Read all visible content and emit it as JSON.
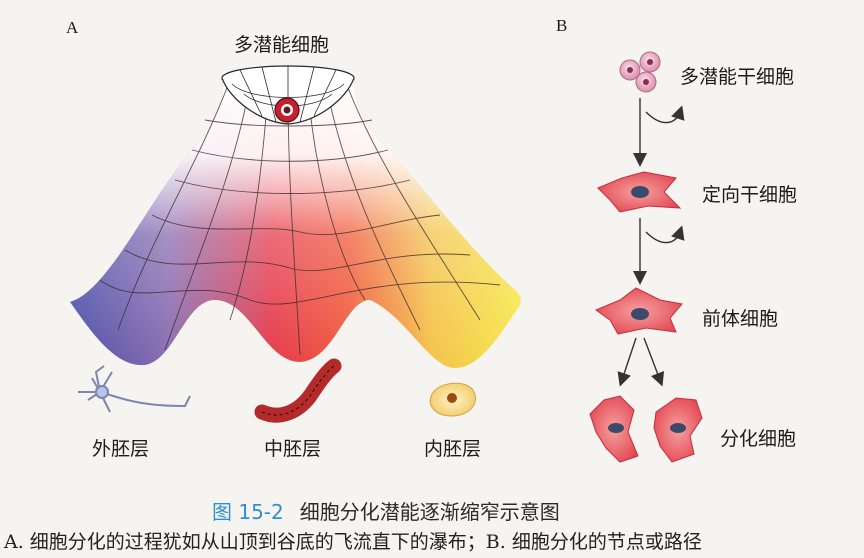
{
  "panel_a": {
    "letter": "A",
    "top_label": "多潜能细胞",
    "layers": [
      "外胚层",
      "中胚层",
      "内胚层"
    ]
  },
  "panel_b": {
    "letter": "B",
    "stages": [
      "多潜能干细胞",
      "定向干细胞",
      "前体细胞",
      "分化细胞"
    ]
  },
  "caption": {
    "figure_number": "图 15-2",
    "title": "细胞分化潜能逐渐缩窄示意图"
  },
  "description": "A. 细胞分化的过程犹如从山顶到谷底的飞流直下的瀑布；B. 细胞分化的节点或路径",
  "colors": {
    "ectoderm": "#4a4ea8",
    "mesoderm": "#e0203a",
    "endoderm": "#f2dc2a",
    "cell_red": "#e2454f",
    "caption_blue": "#2f8fd0"
  }
}
